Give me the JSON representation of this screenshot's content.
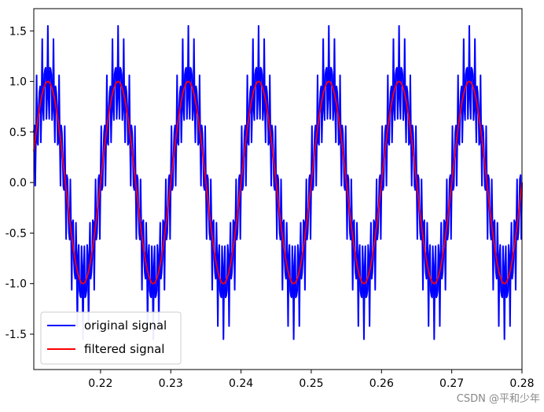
{
  "chart_data": {
    "type": "line",
    "title": "",
    "xlabel": "",
    "ylabel": "",
    "xlim": [
      0.2105,
      0.28
    ],
    "ylim": [
      -1.85,
      1.72
    ],
    "grid": false,
    "legend_position": "lower-left",
    "x_ticks": [
      0.22,
      0.23,
      0.24,
      0.25,
      0.26,
      0.27,
      0.28
    ],
    "x_tick_labels": [
      "0.22",
      "0.23",
      "0.24",
      "0.25",
      "0.26",
      "0.27",
      "0.28"
    ],
    "y_ticks": [
      1.5,
      1.0,
      0.5,
      0.0,
      -0.5,
      -1.0,
      -1.5
    ],
    "y_tick_labels": [
      "1.5",
      "1.0",
      "0.5",
      "0.0",
      "-0.5",
      "-1.0",
      "-1.5"
    ],
    "series": [
      {
        "name": "original signal",
        "color": "#0000ff",
        "signal": {
          "components": [
            {
              "amplitude": 1.0,
              "frequency_hz": 100
            },
            {
              "amplitude": 0.35,
              "frequency_hz": 2500
            },
            {
              "amplitude": 0.2,
              "frequency_hz": 3700
            }
          ],
          "sample_rate_hz": 10000
        }
      },
      {
        "name": "filtered signal",
        "color": "#ff0000",
        "signal": {
          "components": [
            {
              "amplitude": 1.0,
              "frequency_hz": 100
            }
          ],
          "sample_rate_hz": 10000
        }
      }
    ]
  },
  "watermark": "CSDN @平和少年"
}
